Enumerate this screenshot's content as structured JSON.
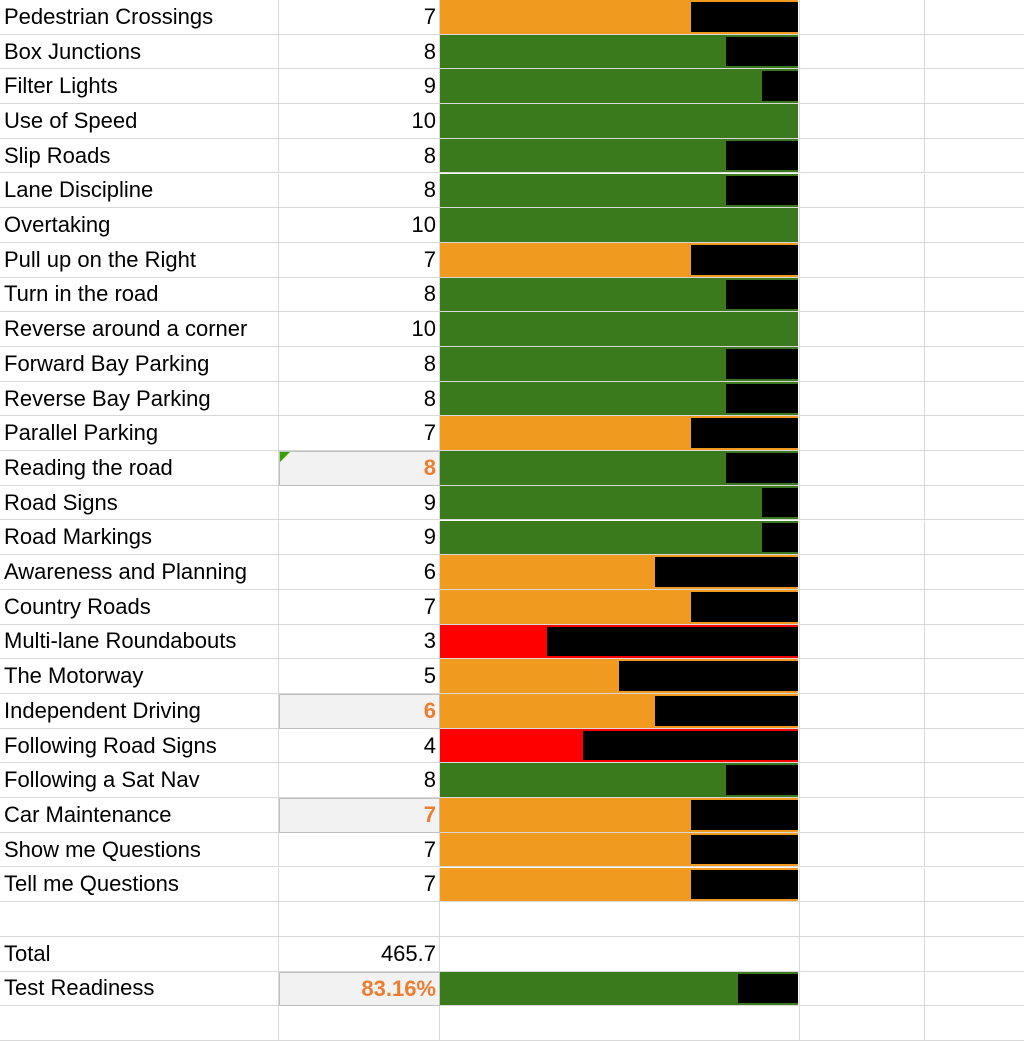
{
  "colors": {
    "green": "#3a7a1c",
    "orange": "#f09a1f",
    "red": "#ff0000",
    "remainder": "#000000",
    "highlight_text": "#ed7d31"
  },
  "rows": [
    {
      "label": "Pedestrian Crossings",
      "score": "7",
      "value": 7,
      "band": "orange"
    },
    {
      "label": "Box Junctions",
      "score": "8",
      "value": 8,
      "band": "green"
    },
    {
      "label": "Filter Lights",
      "score": "9",
      "value": 9,
      "band": "green"
    },
    {
      "label": "Use of Speed",
      "score": "10",
      "value": 10,
      "band": "green"
    },
    {
      "label": "Slip Roads",
      "score": "8",
      "value": 8,
      "band": "green"
    },
    {
      "label": "Lane Discipline",
      "score": "8",
      "value": 8,
      "band": "green"
    },
    {
      "label": "Overtaking",
      "score": "10",
      "value": 10,
      "band": "green"
    },
    {
      "label": "Pull up on the Right",
      "score": "7",
      "value": 7,
      "band": "orange"
    },
    {
      "label": "Turn in the road",
      "score": "8",
      "value": 8,
      "band": "green"
    },
    {
      "label": "Reverse around a corner",
      "score": "10",
      "value": 10,
      "band": "green"
    },
    {
      "label": "Forward Bay Parking",
      "score": "8",
      "value": 8,
      "band": "green"
    },
    {
      "label": "Reverse Bay Parking",
      "score": "8",
      "value": 8,
      "band": "green"
    },
    {
      "label": "Parallel Parking",
      "score": "7",
      "value": 7,
      "band": "orange"
    },
    {
      "label": "Reading the road",
      "score": "8",
      "value": 8,
      "band": "green",
      "highlight": true,
      "comment": true
    },
    {
      "label": "Road Signs",
      "score": "9",
      "value": 9,
      "band": "green"
    },
    {
      "label": "Road Markings",
      "score": "9",
      "value": 9,
      "band": "green"
    },
    {
      "label": "Awareness and Planning",
      "score": "6",
      "value": 6,
      "band": "orange"
    },
    {
      "label": "Country Roads",
      "score": "7",
      "value": 7,
      "band": "orange"
    },
    {
      "label": "Multi-lane Roundabouts",
      "score": "3",
      "value": 3,
      "band": "red"
    },
    {
      "label": "The Motorway",
      "score": "5",
      "value": 5,
      "band": "orange"
    },
    {
      "label": "Independent Driving",
      "score": "6",
      "value": 6,
      "band": "orange",
      "highlight": true
    },
    {
      "label": "Following Road Signs",
      "score": "4",
      "value": 4,
      "band": "red"
    },
    {
      "label": "Following a Sat Nav",
      "score": "8",
      "value": 8,
      "band": "green"
    },
    {
      "label": "Car Maintenance",
      "score": "7",
      "value": 7,
      "band": "orange",
      "highlight": true
    },
    {
      "label": "Show me Questions",
      "score": "7",
      "value": 7,
      "band": "orange"
    },
    {
      "label": "Tell me Questions",
      "score": "7",
      "value": 7,
      "band": "orange"
    }
  ],
  "max_score": 10,
  "total": {
    "label": "Total",
    "value": "465.7"
  },
  "readiness": {
    "label": "Test Readiness",
    "value": "83.16%",
    "fraction": 0.8316,
    "band": "green"
  }
}
